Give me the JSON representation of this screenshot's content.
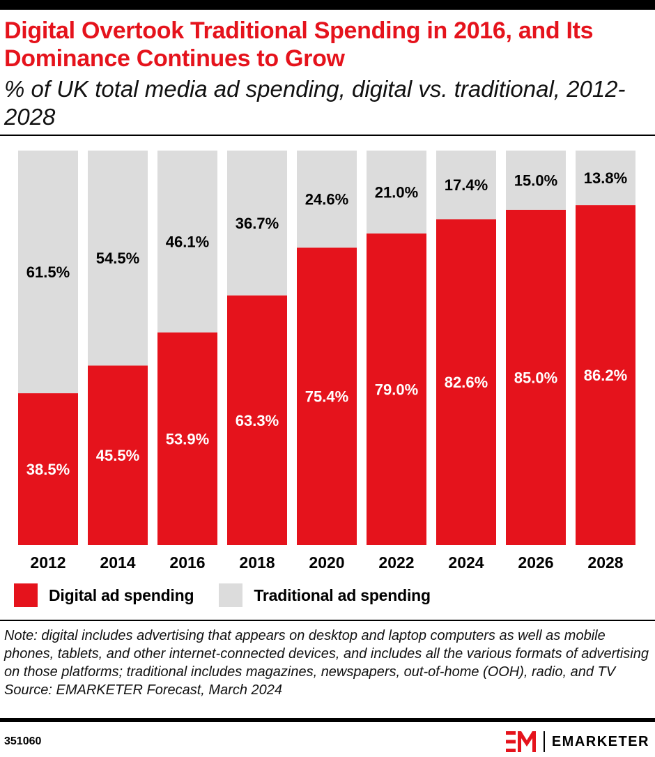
{
  "header": {
    "title": "Digital Overtook Traditional Spending in 2016, and Its Dominance Continues to Grow",
    "subtitle": "% of UK total media ad spending, digital vs. traditional, 2012-2028"
  },
  "chart_data": {
    "type": "bar",
    "stacked": true,
    "categories": [
      "2012",
      "2014",
      "2016",
      "2018",
      "2020",
      "2022",
      "2024",
      "2026",
      "2028"
    ],
    "series": [
      {
        "name": "Digital ad spending",
        "color": "#e5131c",
        "label_color": "#ffffff",
        "values": [
          38.5,
          45.5,
          53.9,
          63.3,
          75.4,
          79.0,
          82.6,
          85.0,
          86.2
        ]
      },
      {
        "name": "Traditional ad spending",
        "color": "#dcdcdc",
        "label_color": "#000000",
        "values": [
          61.5,
          54.5,
          46.1,
          36.7,
          24.6,
          21.0,
          17.4,
          15.0,
          13.8
        ]
      }
    ],
    "ylim": [
      0,
      100
    ],
    "value_suffix": "%",
    "grid": false,
    "legend_position": "bottom-left"
  },
  "footer": {
    "note": "Note: digital includes advertising that appears on desktop and laptop computers as well as mobile phones, tablets, and other internet-connected devices, and includes all the various formats of advertising on those platforms; traditional includes magazines, newspapers, out-of-home (OOH), radio, and TV",
    "source": "Source: EMARKETER Forecast, March 2024",
    "chart_id": "351060",
    "brand": "EMARKETER",
    "brand_icon": "em-logo-icon"
  }
}
